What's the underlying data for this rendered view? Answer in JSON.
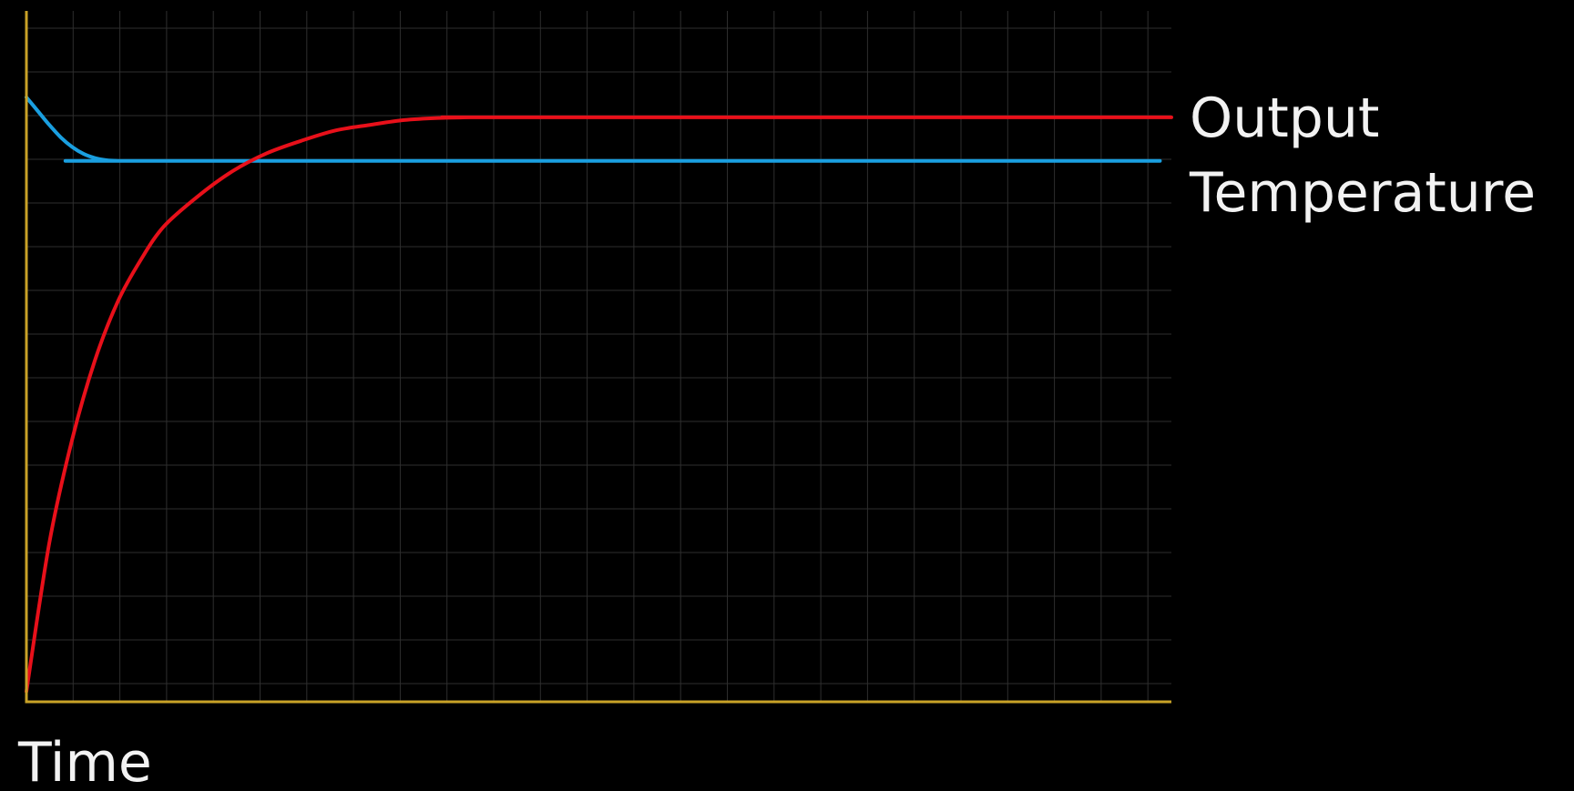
{
  "chart_data": {
    "type": "line",
    "title": "",
    "xlabel": "Time",
    "ylabel": "",
    "xlim": [
      0,
      100
    ],
    "ylim": [
      0,
      100
    ],
    "grid": true,
    "legend": "right",
    "series": [
      {
        "name": "Output",
        "color": "#1a9fe0",
        "x": [
          0,
          1,
          2,
          3,
          4,
          5,
          6,
          7,
          8,
          9,
          10,
          99
        ],
        "y": [
          87.5,
          85.5,
          83.5,
          81.7,
          80.3,
          79.3,
          78.7,
          78.4,
          78.3,
          78.3,
          78.3,
          78.3
        ]
      },
      {
        "name": "Temperature",
        "color": "#e8101a",
        "x": [
          0,
          2,
          4,
          6,
          8,
          10,
          12,
          15,
          18,
          21,
          24,
          27,
          30,
          33,
          36,
          39,
          41,
          100
        ],
        "y": [
          1.5,
          23,
          38,
          49.5,
          58,
          64,
          68.8,
          73.2,
          76.8,
          79.4,
          81.2,
          82.7,
          83.5,
          84.2,
          84.5,
          84.6,
          84.6,
          84.6
        ]
      }
    ],
    "colors": {
      "axis": "#c9a227",
      "grid": "#2e2e2e",
      "text": "#f2f2f2",
      "background": "#000000"
    }
  }
}
